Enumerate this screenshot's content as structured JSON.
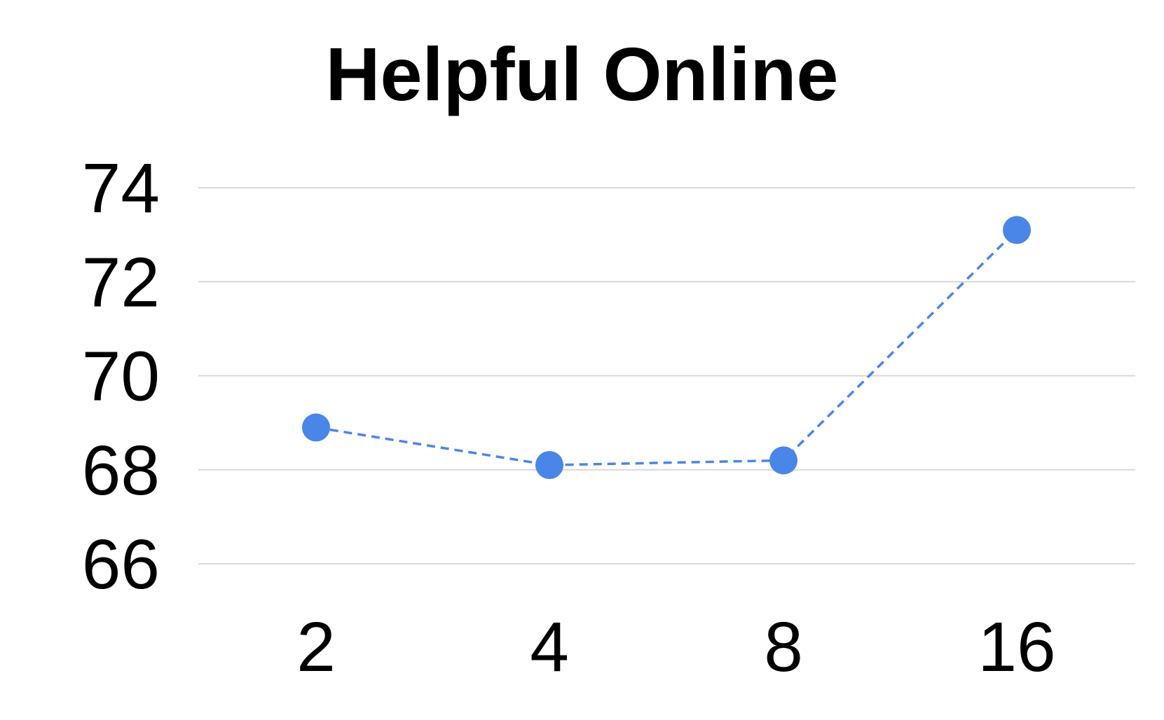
{
  "colors": {
    "background": "#ffffff",
    "series": "#4a86e8",
    "gridline": "#d9d9d9",
    "text": "#000000"
  },
  "chart_data": {
    "type": "line",
    "title": "Helpful Online",
    "xlabel": "",
    "ylabel": "",
    "categories": [
      "2",
      "4",
      "8",
      "16"
    ],
    "series": [
      {
        "values": [
          68.9,
          68.1,
          68.2,
          73.1
        ],
        "line_style": "dashed",
        "marker": "circle"
      }
    ],
    "ylim": [
      66,
      74
    ],
    "yticks": [
      "66",
      "68",
      "70",
      "72",
      "74"
    ],
    "grid": true,
    "legend": "none"
  }
}
